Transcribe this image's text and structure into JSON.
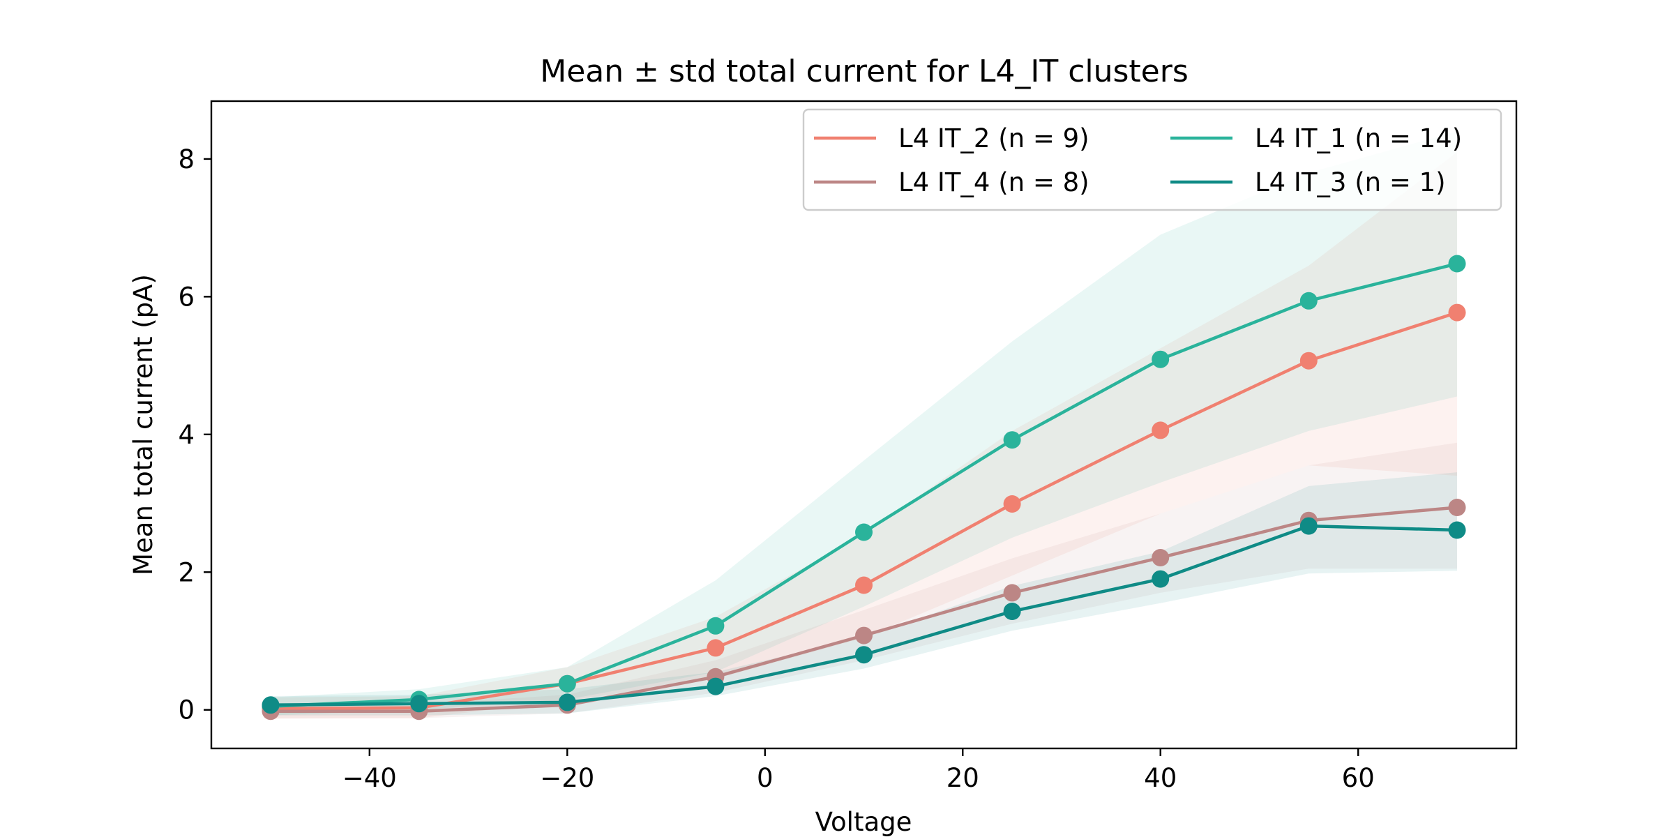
{
  "chart_data": {
    "type": "line",
    "title": "Mean ± std total current for L4_IT clusters",
    "xlabel": "Voltage",
    "ylabel": "Mean total current (pA)",
    "x": [
      -50,
      -35,
      -20,
      -5,
      10,
      25,
      40,
      55,
      70
    ],
    "xlim": [
      -56,
      76
    ],
    "ylim": [
      -0.56,
      8.84
    ],
    "xticks": [
      -40,
      -20,
      0,
      20,
      40,
      60
    ],
    "xtick_labels": [
      "−40",
      "−20",
      "0",
      "20",
      "40",
      "60"
    ],
    "yticks": [
      0,
      2,
      4,
      6,
      8
    ],
    "ytick_labels": [
      "0",
      "2",
      "4",
      "6",
      "8"
    ],
    "grid": false,
    "legend": {
      "placement": "top-right",
      "columns": 2
    },
    "series": [
      {
        "name": "L4 IT_2 (n = 9)",
        "color": "#f08070",
        "values": [
          0.02,
          0.03,
          0.38,
          0.9,
          1.81,
          2.99,
          4.06,
          5.07,
          5.77
        ],
        "lower": [
          -0.13,
          -0.12,
          0.13,
          0.45,
          1.05,
          1.95,
          2.85,
          3.55,
          3.4
        ],
        "upper": [
          0.18,
          0.2,
          0.62,
          1.35,
          2.55,
          4.05,
          5.25,
          6.45,
          8.1
        ]
      },
      {
        "name": "L4 IT_1 (n = 14)",
        "color": "#2ab39b",
        "values": [
          0.05,
          0.15,
          0.38,
          1.22,
          2.58,
          3.92,
          5.09,
          5.94,
          6.48
        ],
        "lower": [
          -0.08,
          0.0,
          0.15,
          0.55,
          1.5,
          2.5,
          3.3,
          4.05,
          4.55
        ],
        "upper": [
          0.18,
          0.3,
          0.62,
          1.88,
          3.62,
          5.35,
          6.9,
          7.8,
          8.4
        ]
      },
      {
        "name": "L4 IT_4 (n = 8)",
        "color": "#bc8685",
        "values": [
          -0.02,
          -0.02,
          0.07,
          0.48,
          1.08,
          1.7,
          2.21,
          2.75,
          2.94
        ],
        "lower": [
          -0.12,
          -0.12,
          -0.05,
          0.25,
          0.72,
          1.25,
          1.7,
          2.05,
          2.05
        ],
        "upper": [
          0.1,
          0.08,
          0.22,
          0.72,
          1.45,
          2.2,
          2.85,
          3.55,
          3.88
        ]
      },
      {
        "name": "L4 IT_3 (n = 1)",
        "color": "#0f8b86",
        "values": [
          0.07,
          0.09,
          0.11,
          0.34,
          0.8,
          1.43,
          1.9,
          2.67,
          2.61
        ],
        "lower": [
          -0.08,
          -0.08,
          -0.05,
          0.2,
          0.6,
          1.15,
          1.55,
          1.98,
          2.02
        ],
        "upper": [
          0.2,
          0.22,
          0.3,
          0.55,
          1.05,
          1.8,
          2.3,
          3.25,
          3.45
        ]
      }
    ]
  }
}
